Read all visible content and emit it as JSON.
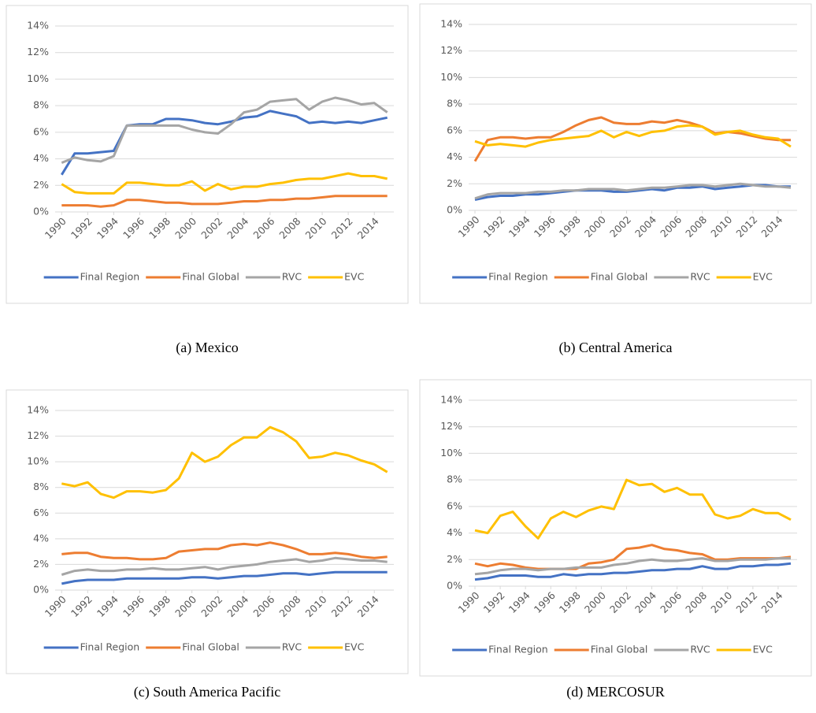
{
  "chart_data": [
    {
      "type": "line",
      "caption": "(a) Mexico",
      "x": [
        1990,
        1991,
        1992,
        1993,
        1994,
        1995,
        1996,
        1997,
        1998,
        1999,
        2000,
        2001,
        2002,
        2003,
        2004,
        2005,
        2006,
        2007,
        2008,
        2009,
        2010,
        2011,
        2012,
        2013,
        2014,
        2015
      ],
      "xlim": [
        1990,
        2015
      ],
      "xticks": [
        1990,
        1992,
        1994,
        1996,
        1998,
        2000,
        2002,
        2004,
        2006,
        2008,
        2010,
        2012,
        2014
      ],
      "ylim": [
        0,
        14
      ],
      "yticks": [
        {
          "value": 0,
          "label": "0%"
        },
        {
          "value": 2,
          "label": "2%"
        },
        {
          "value": 4,
          "label": "4%"
        },
        {
          "value": 6,
          "label": "6%"
        },
        {
          "value": 8,
          "label": "8%"
        },
        {
          "value": 10,
          "label": "10%"
        },
        {
          "value": 12,
          "label": "12%"
        },
        {
          "value": 14,
          "label": "14%"
        }
      ],
      "grid": true,
      "legend": "bottom",
      "series": [
        {
          "name": "Final Region",
          "color": "#4472c4",
          "values": [
            2.8,
            4.4,
            4.4,
            4.5,
            4.6,
            6.5,
            6.6,
            6.6,
            7.0,
            7.0,
            6.9,
            6.7,
            6.6,
            6.8,
            7.1,
            7.2,
            7.6,
            7.4,
            7.2,
            6.7,
            6.8,
            6.7,
            6.8,
            6.7,
            6.9,
            7.1
          ]
        },
        {
          "name": "Final Global",
          "color": "#ed7d31",
          "values": [
            0.5,
            0.5,
            0.5,
            0.4,
            0.5,
            0.9,
            0.9,
            0.8,
            0.7,
            0.7,
            0.6,
            0.6,
            0.6,
            0.7,
            0.8,
            0.8,
            0.9,
            0.9,
            1.0,
            1.0,
            1.1,
            1.2,
            1.2,
            1.2,
            1.2,
            1.2
          ]
        },
        {
          "name": "RVC",
          "color": "#a5a5a5",
          "values": [
            3.7,
            4.1,
            3.9,
            3.8,
            4.2,
            6.5,
            6.5,
            6.5,
            6.5,
            6.5,
            6.2,
            6.0,
            5.9,
            6.6,
            7.5,
            7.7,
            8.3,
            8.4,
            8.5,
            7.7,
            8.3,
            8.6,
            8.4,
            8.1,
            8.2,
            7.5
          ]
        },
        {
          "name": "EVC",
          "color": "#ffc000",
          "values": [
            2.1,
            1.5,
            1.4,
            1.4,
            1.4,
            2.2,
            2.2,
            2.1,
            2.0,
            2.0,
            2.3,
            1.6,
            2.1,
            1.7,
            1.9,
            1.9,
            2.1,
            2.2,
            2.4,
            2.5,
            2.5,
            2.7,
            2.9,
            2.7,
            2.7,
            2.5
          ]
        }
      ]
    },
    {
      "type": "line",
      "caption": "(b) Central America",
      "x": [
        1990,
        1991,
        1992,
        1993,
        1994,
        1995,
        1996,
        1997,
        1998,
        1999,
        2000,
        2001,
        2002,
        2003,
        2004,
        2005,
        2006,
        2007,
        2008,
        2009,
        2010,
        2011,
        2012,
        2013,
        2014,
        2015
      ],
      "xlim": [
        1990,
        2015
      ],
      "xticks": [
        1990,
        1992,
        1994,
        1996,
        1998,
        2000,
        2002,
        2004,
        2006,
        2008,
        2010,
        2012,
        2014
      ],
      "ylim": [
        0,
        14
      ],
      "yticks": [
        {
          "value": 0,
          "label": "0%"
        },
        {
          "value": 2,
          "label": "2%"
        },
        {
          "value": 4,
          "label": "4%"
        },
        {
          "value": 6,
          "label": "6%"
        },
        {
          "value": 8,
          "label": "8%"
        },
        {
          "value": 10,
          "label": "10%"
        },
        {
          "value": 12,
          "label": "12%"
        },
        {
          "value": 14,
          "label": "14%"
        }
      ],
      "grid": true,
      "legend": "bottom",
      "series": [
        {
          "name": "Final Region",
          "color": "#4472c4",
          "values": [
            0.8,
            1.0,
            1.1,
            1.1,
            1.2,
            1.2,
            1.3,
            1.4,
            1.5,
            1.5,
            1.5,
            1.4,
            1.4,
            1.5,
            1.6,
            1.5,
            1.7,
            1.7,
            1.8,
            1.6,
            1.7,
            1.8,
            1.9,
            1.9,
            1.8,
            1.8
          ]
        },
        {
          "name": "Final Global",
          "color": "#ed7d31",
          "values": [
            3.7,
            5.3,
            5.5,
            5.5,
            5.4,
            5.5,
            5.5,
            5.9,
            6.4,
            6.8,
            7.0,
            6.6,
            6.5,
            6.5,
            6.7,
            6.6,
            6.8,
            6.6,
            6.3,
            5.8,
            5.9,
            5.8,
            5.6,
            5.4,
            5.3,
            5.3
          ]
        },
        {
          "name": "RVC",
          "color": "#a5a5a5",
          "values": [
            0.9,
            1.2,
            1.3,
            1.3,
            1.3,
            1.4,
            1.4,
            1.5,
            1.5,
            1.6,
            1.6,
            1.6,
            1.5,
            1.6,
            1.7,
            1.7,
            1.8,
            1.9,
            1.9,
            1.8,
            1.9,
            2.0,
            1.9,
            1.8,
            1.8,
            1.7
          ]
        },
        {
          "name": "EVC",
          "color": "#ffc000",
          "values": [
            5.2,
            4.9,
            5.0,
            4.9,
            4.8,
            5.1,
            5.3,
            5.4,
            5.5,
            5.6,
            6.0,
            5.5,
            5.9,
            5.6,
            5.9,
            6.0,
            6.3,
            6.4,
            6.3,
            5.7,
            5.9,
            6.0,
            5.7,
            5.5,
            5.4,
            4.8
          ]
        }
      ]
    },
    {
      "type": "line",
      "caption": "(c) South America Pacific",
      "x": [
        1990,
        1991,
        1992,
        1993,
        1994,
        1995,
        1996,
        1997,
        1998,
        1999,
        2000,
        2001,
        2002,
        2003,
        2004,
        2005,
        2006,
        2007,
        2008,
        2009,
        2010,
        2011,
        2012,
        2013,
        2014,
        2015
      ],
      "xlim": [
        1990,
        2015
      ],
      "xticks": [
        1990,
        1992,
        1994,
        1996,
        1998,
        2000,
        2002,
        2004,
        2006,
        2008,
        2010,
        2012,
        2014
      ],
      "ylim": [
        0,
        14
      ],
      "yticks": [
        {
          "value": 0,
          "label": "0%"
        },
        {
          "value": 2,
          "label": "2%"
        },
        {
          "value": 4,
          "label": "4%"
        },
        {
          "value": 6,
          "label": "6%"
        },
        {
          "value": 8,
          "label": "8%"
        },
        {
          "value": 10,
          "label": "10%"
        },
        {
          "value": 12,
          "label": "12%"
        },
        {
          "value": 14,
          "label": "14%"
        }
      ],
      "grid": true,
      "legend": "bottom",
      "series": [
        {
          "name": "Final Region",
          "color": "#4472c4",
          "values": [
            0.5,
            0.7,
            0.8,
            0.8,
            0.8,
            0.9,
            0.9,
            0.9,
            0.9,
            0.9,
            1.0,
            1.0,
            0.9,
            1.0,
            1.1,
            1.1,
            1.2,
            1.3,
            1.3,
            1.2,
            1.3,
            1.4,
            1.4,
            1.4,
            1.4,
            1.4
          ]
        },
        {
          "name": "Final Global",
          "color": "#ed7d31",
          "values": [
            2.8,
            2.9,
            2.9,
            2.6,
            2.5,
            2.5,
            2.4,
            2.4,
            2.5,
            3.0,
            3.1,
            3.2,
            3.2,
            3.5,
            3.6,
            3.5,
            3.7,
            3.5,
            3.2,
            2.8,
            2.8,
            2.9,
            2.8,
            2.6,
            2.5,
            2.6
          ]
        },
        {
          "name": "RVC",
          "color": "#a5a5a5",
          "values": [
            1.2,
            1.5,
            1.6,
            1.5,
            1.5,
            1.6,
            1.6,
            1.7,
            1.6,
            1.6,
            1.7,
            1.8,
            1.6,
            1.8,
            1.9,
            2.0,
            2.2,
            2.3,
            2.4,
            2.2,
            2.3,
            2.5,
            2.4,
            2.3,
            2.3,
            2.2
          ]
        },
        {
          "name": "EVC",
          "color": "#ffc000",
          "values": [
            8.3,
            8.1,
            8.4,
            7.5,
            7.2,
            7.7,
            7.7,
            7.6,
            7.8,
            8.7,
            10.7,
            10.0,
            10.4,
            11.3,
            11.9,
            11.9,
            12.7,
            12.3,
            11.6,
            10.3,
            10.4,
            10.7,
            10.5,
            10.1,
            9.8,
            9.2
          ]
        }
      ]
    },
    {
      "type": "line",
      "caption": "(d) MERCOSUR",
      "x": [
        1990,
        1991,
        1992,
        1993,
        1994,
        1995,
        1996,
        1997,
        1998,
        1999,
        2000,
        2001,
        2002,
        2003,
        2004,
        2005,
        2006,
        2007,
        2008,
        2009,
        2010,
        2011,
        2012,
        2013,
        2014,
        2015
      ],
      "xlim": [
        1990,
        2015
      ],
      "xticks": [
        1990,
        1992,
        1994,
        1996,
        1998,
        2000,
        2002,
        2004,
        2006,
        2008,
        2010,
        2012,
        2014
      ],
      "ylim": [
        0,
        14
      ],
      "yticks": [
        {
          "value": 0,
          "label": "0%"
        },
        {
          "value": 2,
          "label": "2%"
        },
        {
          "value": 4,
          "label": "4%"
        },
        {
          "value": 6,
          "label": "6%"
        },
        {
          "value": 8,
          "label": "8%"
        },
        {
          "value": 10,
          "label": "10%"
        },
        {
          "value": 12,
          "label": "12%"
        },
        {
          "value": 14,
          "label": "14%"
        }
      ],
      "grid": true,
      "legend": "bottom",
      "series": [
        {
          "name": "Final Region",
          "color": "#4472c4",
          "values": [
            0.5,
            0.6,
            0.8,
            0.8,
            0.8,
            0.7,
            0.7,
            0.9,
            0.8,
            0.9,
            0.9,
            1.0,
            1.0,
            1.1,
            1.2,
            1.2,
            1.3,
            1.3,
            1.5,
            1.3,
            1.3,
            1.5,
            1.5,
            1.6,
            1.6,
            1.7
          ]
        },
        {
          "name": "Final Global",
          "color": "#ed7d31",
          "values": [
            1.7,
            1.5,
            1.7,
            1.6,
            1.4,
            1.3,
            1.3,
            1.3,
            1.3,
            1.7,
            1.8,
            2.0,
            2.8,
            2.9,
            3.1,
            2.8,
            2.7,
            2.5,
            2.4,
            2.0,
            2.0,
            2.1,
            2.1,
            2.1,
            2.1,
            2.2
          ]
        },
        {
          "name": "RVC",
          "color": "#a5a5a5",
          "values": [
            0.9,
            1.0,
            1.2,
            1.3,
            1.3,
            1.2,
            1.3,
            1.3,
            1.4,
            1.4,
            1.4,
            1.6,
            1.7,
            1.9,
            2.0,
            1.9,
            1.9,
            2.0,
            2.1,
            1.9,
            1.9,
            2.0,
            2.0,
            2.0,
            2.1,
            2.1
          ]
        },
        {
          "name": "EVC",
          "color": "#ffc000",
          "values": [
            4.2,
            4.0,
            5.3,
            5.6,
            4.5,
            3.6,
            5.1,
            5.6,
            5.2,
            5.7,
            6.0,
            5.8,
            8.0,
            7.6,
            7.7,
            7.1,
            7.4,
            6.9,
            6.9,
            5.4,
            5.1,
            5.3,
            5.8,
            5.5,
            5.5,
            5.0
          ]
        }
      ]
    }
  ]
}
